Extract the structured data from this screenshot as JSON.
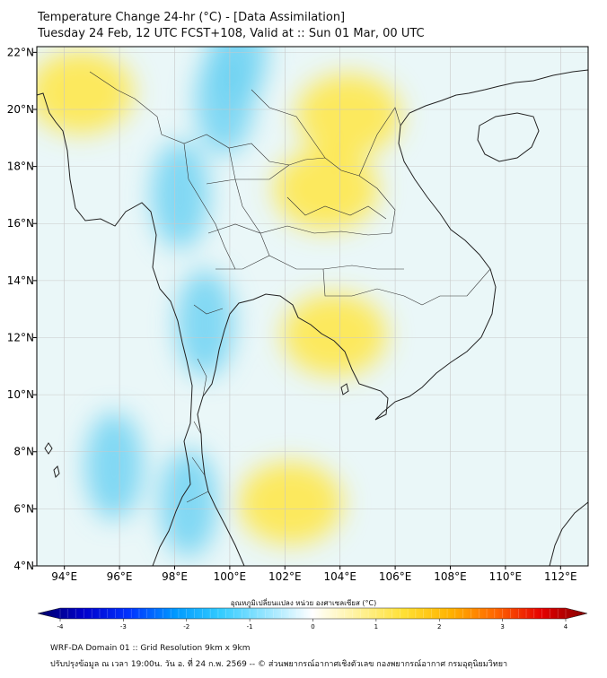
{
  "header": {
    "title_line1": "Temperature Change 24-hr (°C) - [Data Assimilation]",
    "title_line2": "Tuesday 24 Feb, 12 UTC FCST+108, Valid at :: Sun 01 Mar, 00 UTC"
  },
  "map": {
    "lon_ticks": [
      "94°E",
      "96°E",
      "98°E",
      "100°E",
      "102°E",
      "104°E",
      "106°E",
      "108°E",
      "110°E",
      "112°E"
    ],
    "lat_ticks": [
      "22°N",
      "20°N",
      "18°N",
      "16°N",
      "14°N",
      "12°N",
      "10°N",
      "8°N",
      "6°N",
      "4°N"
    ],
    "lon_range": [
      93,
      113
    ],
    "lat_range": [
      4,
      22.2
    ],
    "anomalies": [
      {
        "lon": 103.5,
        "lat": 17.2,
        "kind": "warm"
      },
      {
        "lon": 104.3,
        "lat": 19.8,
        "kind": "warm"
      },
      {
        "lon": 94.6,
        "lat": 20.6,
        "kind": "warm"
      },
      {
        "lon": 102.2,
        "lat": 6.2,
        "kind": "warm"
      },
      {
        "lon": 103.8,
        "lat": 12.1,
        "kind": "warm"
      },
      {
        "lon": 98.2,
        "lat": 17.0,
        "kind": "cool"
      },
      {
        "lon": 99.1,
        "lat": 12.5,
        "kind": "cool"
      },
      {
        "lon": 99.8,
        "lat": 20.3,
        "kind": "cool"
      },
      {
        "lon": 98.5,
        "lat": 6.2,
        "kind": "cool"
      },
      {
        "lon": 95.8,
        "lat": 7.5,
        "kind": "cool"
      },
      {
        "lon": 100.3,
        "lat": 22.0,
        "kind": "cool"
      }
    ]
  },
  "colorbar": {
    "title": "อุณหภูมิเปลี่ยนแปลง หน่วย องศาเซลเซียส (°C)",
    "ticks": [
      "-4",
      "-3",
      "-2",
      "-1",
      "0",
      "1",
      "2",
      "3",
      "4"
    ],
    "min": -4,
    "max": 4,
    "colors": [
      "#000066",
      "#0000cc",
      "#0033ff",
      "#0099ff",
      "#33ccff",
      "#99e6ff",
      "#ffffff",
      "#fff29a",
      "#ffe033",
      "#ffb300",
      "#ff6600",
      "#e60000",
      "#800000"
    ]
  },
  "footer": {
    "line1": "WRF-DA Domain 01 :: Grid Resolution 9km x 9km",
    "line2": "ปรับปรุงข้อมูล ณ เวลา 19:00น. วัน อ. ที่ 24 ก.พ. 2569 -- © ส่วนพยากรณ์อากาศเชิงตัวเลข กองพยากรณ์อากาศ กรมอุตุนิยมวิทยา"
  }
}
